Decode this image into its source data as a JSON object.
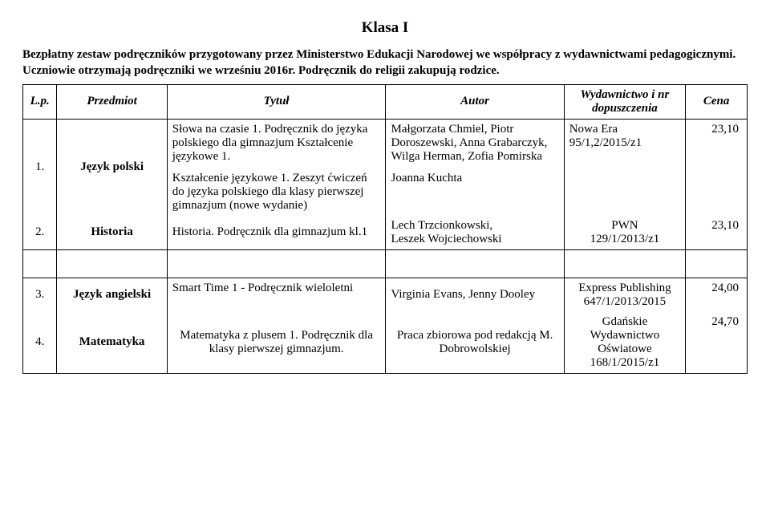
{
  "page_title": "Klasa I",
  "intro": "Bezpłatny zestaw podręczników przygotowany przez Ministerstwo Edukacji Narodowej we współpracy z wydawnictwami pedagogicznymi. Uczniowie otrzymają podręczniki we wrześniu 2016r. Podręcznik do religii zakupują rodzice.",
  "headers": {
    "lp": "L.p.",
    "subject": "Przedmiot",
    "title": "Tytuł",
    "author": "Autor",
    "publisher": "Wydawnictwo i nr dopuszczenia",
    "price": "Cena"
  },
  "rows": [
    {
      "lp": "1.",
      "subject": "Język polski",
      "title_a": "Słowa na czasie 1. Podręcznik do języka polskiego dla gimnazjum Kształcenie językowe 1.",
      "title_b": "Kształcenie językowe 1. Zeszyt ćwiczeń do języka polskiego dla klasy pierwszej gimnazjum (nowe wydanie)",
      "author_a": "Małgorzata Chmiel, Piotr Doroszewski, Anna Grabarczyk, Wilga Herman, Zofia Pomirska",
      "author_b": "Joanna Kuchta",
      "publisher": "Nowa Era\n95/1,2/2015/z1",
      "price": "23,10"
    },
    {
      "lp": "2.",
      "subject": "Historia",
      "title": "Historia. Podręcznik dla gimnazjum kl.1",
      "author": "Lech Trzcionkowski,\nLeszek Wojciechowski",
      "publisher": "PWN\n129/1/2013/z1",
      "price": "23,10"
    },
    {
      "lp": "3.",
      "subject": "Język angielski",
      "title": "Smart Time 1 - Podręcznik wieloletni",
      "author": "Virginia Evans, Jenny Dooley",
      "publisher": "Express Publishing\n647/1/2013/2015",
      "price": "24,00"
    },
    {
      "lp": "4.",
      "subject": "Matematyka",
      "title": "Matematyka z plusem 1. Podręcznik dla klasy pierwszej gimnazjum.",
      "author": "Praca zbiorowa pod redakcją M. Dobrowolskiej",
      "publisher": "Gdańskie Wydawnictwo Oświatowe\n168/1/2015/z1",
      "price": "24,70"
    }
  ]
}
